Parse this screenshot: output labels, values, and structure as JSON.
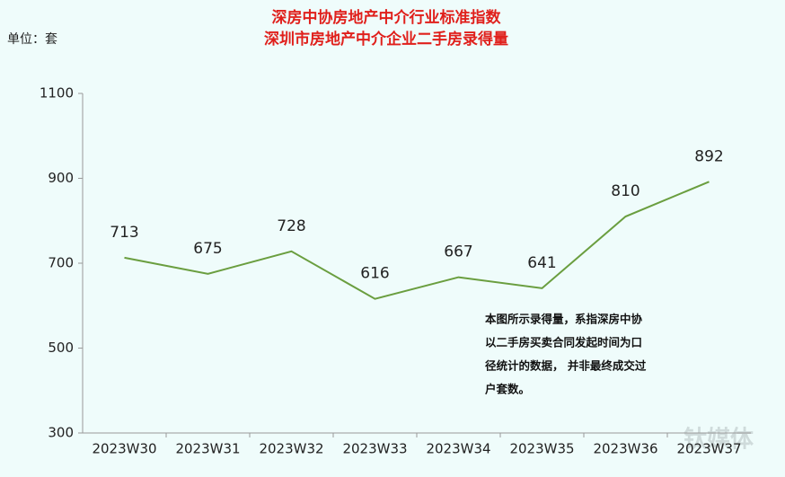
{
  "chart_data": {
    "type": "line",
    "title": "深房中协房地产中介行业标准指数",
    "subtitle": "深圳市房地产中介企业二手房录得量",
    "unit_label": "单位：套",
    "categories": [
      "2023W30",
      "2023W31",
      "2023W32",
      "2023W33",
      "2023W34",
      "2023W35",
      "2023W36",
      "2023W37"
    ],
    "series": [
      {
        "name": "深圳市房地产中介企业二手房录得量",
        "color": "#6a9e3f",
        "values": [
          713,
          675,
          728,
          616,
          667,
          641,
          810,
          892
        ]
      }
    ],
    "ylim": [
      300,
      1100
    ],
    "yticks": [
      300,
      500,
      700,
      900,
      1100
    ],
    "grid": false,
    "annotation": [
      "本图所示录得量，系指深房中协",
      "以二手房买卖合同发起时间为口",
      "径统计的数据， 并非最终成交过",
      "户套数。"
    ],
    "watermark": "钛媒体"
  }
}
